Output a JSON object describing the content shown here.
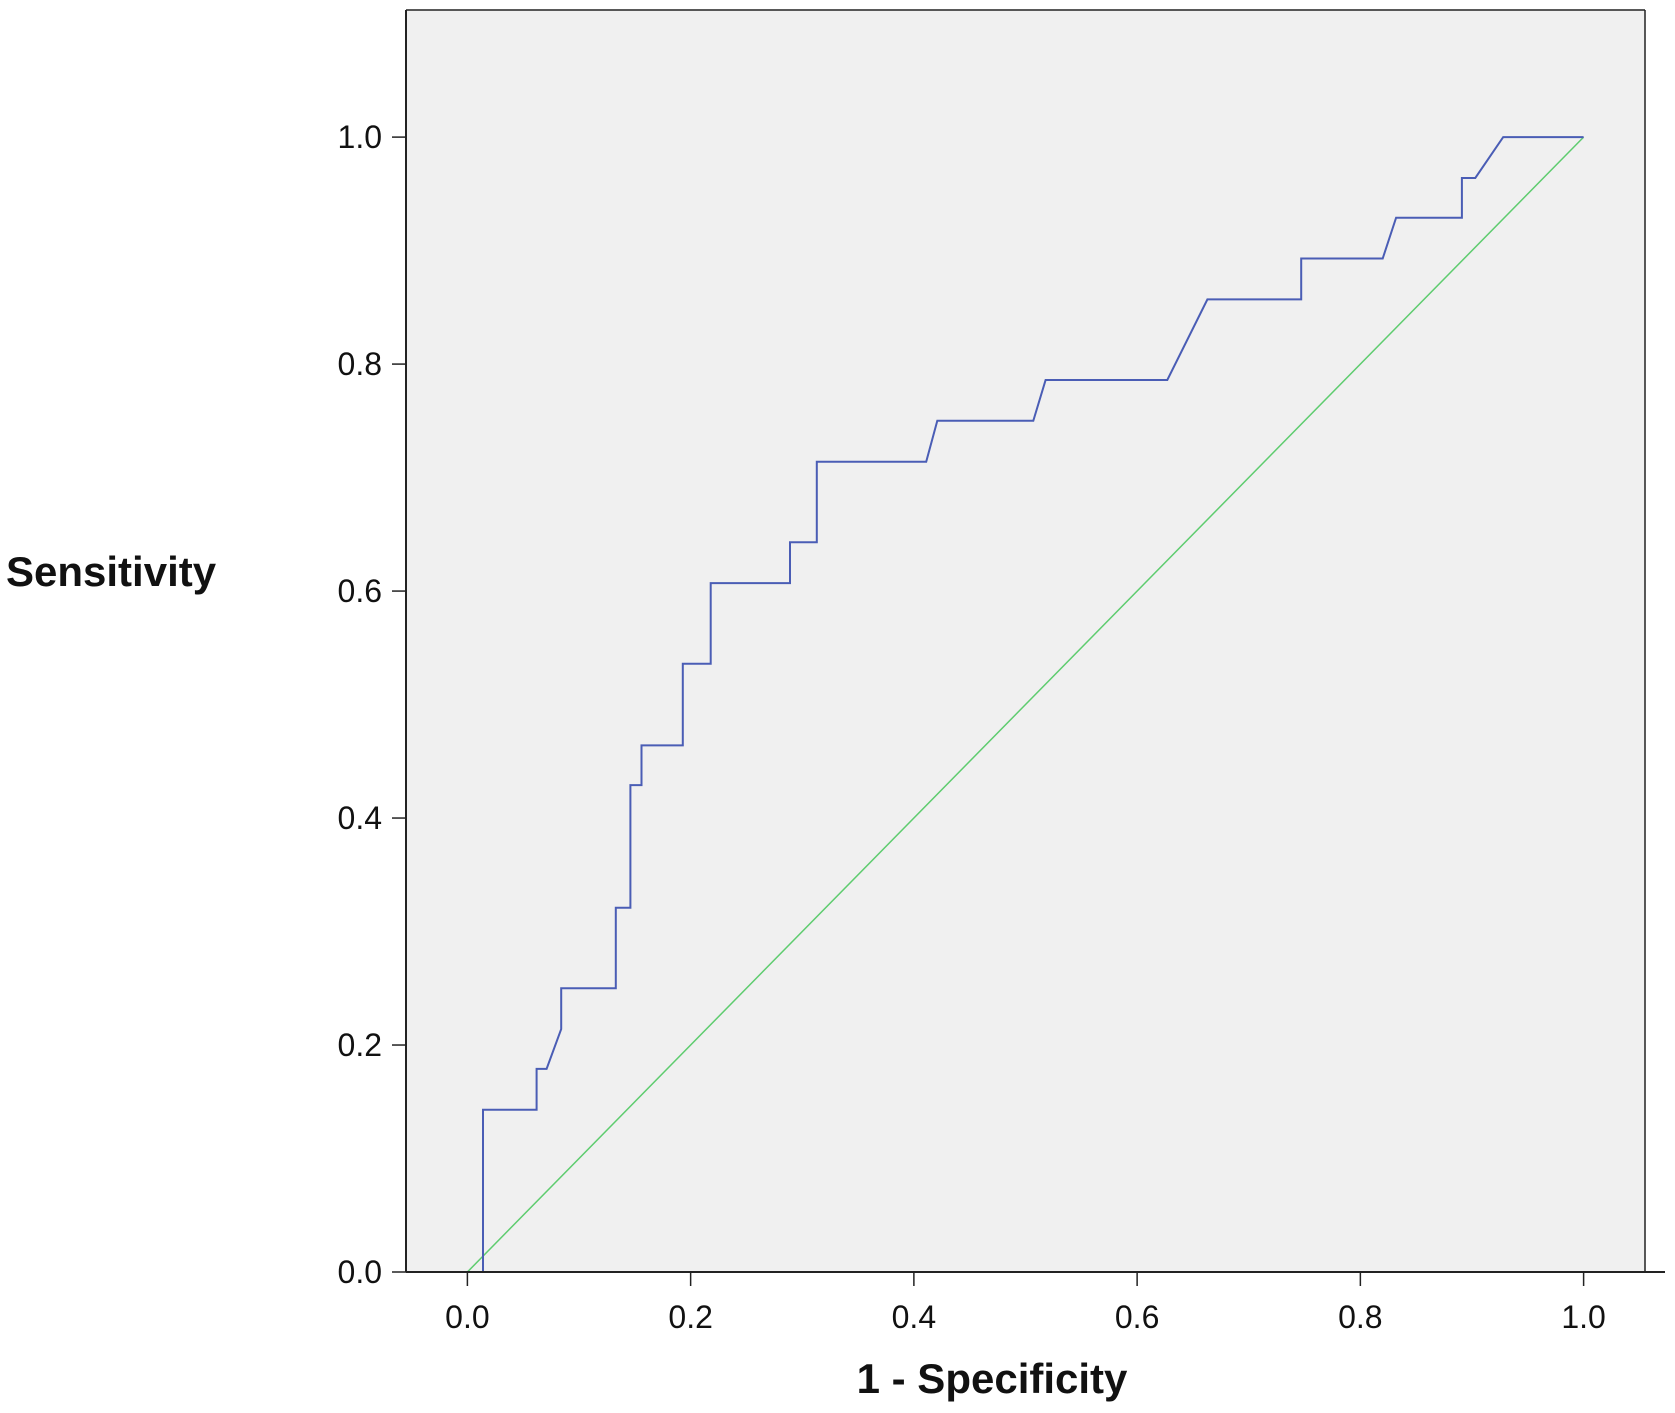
{
  "chart_data": {
    "type": "line",
    "title": "",
    "xlabel": "1 - Specificity",
    "ylabel": "Sensitivity",
    "xlim": [
      -0.055,
      1.055
    ],
    "ylim": [
      0.0,
      1.112
    ],
    "xticks": [
      0.0,
      0.2,
      0.4,
      0.6,
      0.8,
      1.0
    ],
    "yticks": [
      0.0,
      0.2,
      0.4,
      0.6,
      0.8,
      1.0
    ],
    "xtick_labels": [
      "0.0",
      "0.2",
      "0.4",
      "0.6",
      "0.8",
      "1.0"
    ],
    "ytick_labels": [
      "0.0",
      "0.2",
      "0.4",
      "0.6",
      "0.8",
      "1.0"
    ],
    "grid": false,
    "background_color": "#f0f0f0",
    "series": [
      {
        "role": "roc-curve",
        "color": "#4a5db5",
        "x": [
          0.0,
          0.014,
          0.014,
          0.062,
          0.062,
          0.071,
          0.084,
          0.084,
          0.133,
          0.133,
          0.146,
          0.146,
          0.156,
          0.156,
          0.193,
          0.193,
          0.218,
          0.218,
          0.289,
          0.289,
          0.313,
          0.313,
          0.411,
          0.421,
          0.507,
          0.518,
          0.627,
          0.663,
          0.747,
          0.747,
          0.82,
          0.832,
          0.891,
          0.891,
          0.903,
          0.928,
          1.0
        ],
        "y": [
          0.0,
          0.0,
          0.143,
          0.143,
          0.179,
          0.179,
          0.214,
          0.25,
          0.25,
          0.321,
          0.321,
          0.429,
          0.429,
          0.464,
          0.464,
          0.536,
          0.536,
          0.607,
          0.607,
          0.643,
          0.643,
          0.714,
          0.714,
          0.75,
          0.75,
          0.786,
          0.786,
          0.857,
          0.857,
          0.893,
          0.893,
          0.929,
          0.929,
          0.964,
          0.964,
          1.0,
          1.0
        ]
      },
      {
        "role": "reference-line",
        "color": "#5ecc6f",
        "x": [
          0.0,
          1.0
        ],
        "y": [
          0.0,
          1.0
        ]
      }
    ]
  }
}
